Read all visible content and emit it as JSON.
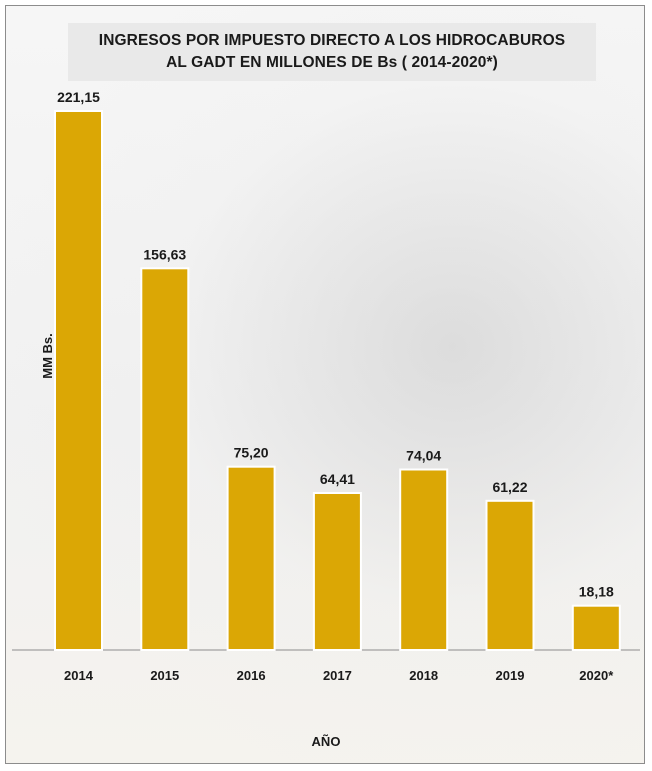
{
  "chart_data": {
    "type": "bar",
    "title": "INGRESOS POR IMPUESTO DIRECTO A LOS HIDROCABUROS",
    "subtitle": "AL GADT EN MILLONES DE Bs ( 2014-2020*)",
    "xlabel": "AÑO",
    "ylabel": "MM Bs.",
    "categories": [
      "2014",
      "2015",
      "2016",
      "2017",
      "2018",
      "2019",
      "2020*"
    ],
    "values": [
      221.15,
      156.63,
      75.2,
      64.41,
      74.04,
      61.22,
      18.18
    ],
    "value_labels": [
      "221,15",
      "156,63",
      "75,20",
      "64,41",
      "74,04",
      "61,22",
      "18,18"
    ],
    "ylim": [
      0,
      221.15
    ],
    "grid": false,
    "bar_color": "#dba705"
  }
}
